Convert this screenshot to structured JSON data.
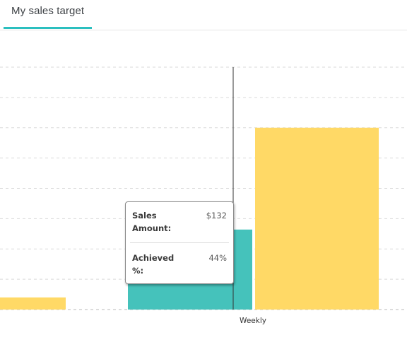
{
  "tab": {
    "title": "My sales target"
  },
  "tooltip": {
    "rows": [
      {
        "label": "Sales Amount:",
        "value": "$132"
      },
      {
        "label": "Achieved %:",
        "value": "44%"
      }
    ]
  },
  "colors": {
    "accent": "#2bbfbf",
    "target_bar": "#ffd966",
    "achieved_bar": "#45c2bb",
    "gridline": "#d9d9d9"
  },
  "chart_data": {
    "type": "bar",
    "categories": [
      "",
      "Weekly",
      ""
    ],
    "tick_labels": [
      "Weekly"
    ],
    "series": [
      {
        "values": [
          null,
          132,
          null
        ]
      },
      {
        "values": [
          20,
          300,
          null
        ]
      }
    ],
    "ylim": [
      0,
      400
    ],
    "grid": true,
    "legend": "none"
  }
}
